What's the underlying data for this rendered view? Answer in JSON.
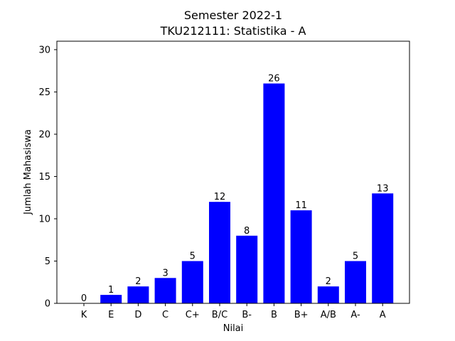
{
  "chart_data": {
    "type": "bar",
    "title": "Semester 2022-1",
    "subtitle": "TKU212111: Statistika - A",
    "xlabel": "Nilai",
    "ylabel": "Jumlah Mahasiswa",
    "categories": [
      "K",
      "E",
      "D",
      "C",
      "C+",
      "B/C",
      "B-",
      "B",
      "B+",
      "A/B",
      "A-",
      "A"
    ],
    "values": [
      0,
      1,
      2,
      3,
      5,
      12,
      8,
      26,
      11,
      2,
      5,
      13
    ],
    "ylim": [
      0,
      31
    ],
    "yticks": [
      0,
      5,
      10,
      15,
      20,
      25,
      30
    ],
    "bar_color": "#0000ff",
    "grid": false,
    "legend": "none"
  }
}
